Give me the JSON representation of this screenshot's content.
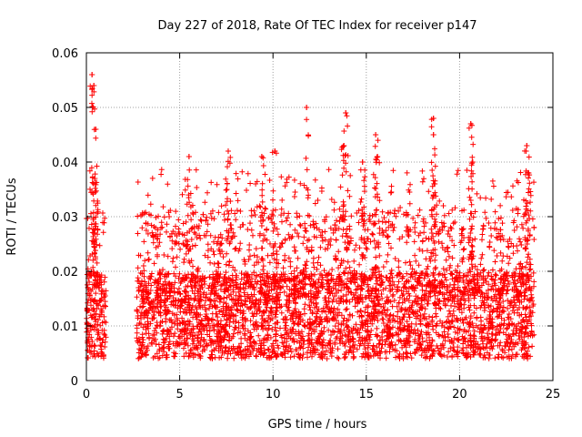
{
  "chart_data": {
    "type": "scatter",
    "title": "Day 227 of 2018, Rate Of TEC Index for receiver p147",
    "xlabel": "GPS time / hours",
    "ylabel": "ROTI / TECUs",
    "xlim": [
      0,
      25
    ],
    "ylim": [
      0,
      0.06
    ],
    "xticks": [
      0,
      5,
      10,
      15,
      20,
      25
    ],
    "xtick_labels": [
      "0",
      "5",
      "10",
      "15",
      "20",
      "25"
    ],
    "yticks": [
      0,
      0.01,
      0.02,
      0.03,
      0.04,
      0.05,
      0.06
    ],
    "ytick_labels": [
      "0",
      "0.01",
      "0.02",
      "0.03",
      "0.04",
      "0.05",
      "0.06"
    ],
    "grid": true,
    "marker": "+",
    "series": [
      {
        "name": "ROTI",
        "color": "#ff0000",
        "coverage_hours": [
          [
            0.0,
            1.05
          ],
          [
            2.7,
            24.0
          ]
        ],
        "typical_range": [
          0.004,
          0.025
        ],
        "peaks": [
          {
            "x": 0.3,
            "y": 0.056
          },
          {
            "x": 0.4,
            "y": 0.054
          },
          {
            "x": 0.5,
            "y": 0.046
          },
          {
            "x": 0.45,
            "y": 0.037
          },
          {
            "x": 5.5,
            "y": 0.041
          },
          {
            "x": 7.6,
            "y": 0.042
          },
          {
            "x": 9.4,
            "y": 0.041
          },
          {
            "x": 10.1,
            "y": 0.042
          },
          {
            "x": 11.8,
            "y": 0.05
          },
          {
            "x": 13.9,
            "y": 0.049
          },
          {
            "x": 13.8,
            "y": 0.043
          },
          {
            "x": 14.8,
            "y": 0.04
          },
          {
            "x": 15.5,
            "y": 0.045
          },
          {
            "x": 15.6,
            "y": 0.041
          },
          {
            "x": 18.6,
            "y": 0.048
          },
          {
            "x": 18.6,
            "y": 0.045
          },
          {
            "x": 20.6,
            "y": 0.047
          },
          {
            "x": 20.7,
            "y": 0.04
          },
          {
            "x": 23.6,
            "y": 0.043
          },
          {
            "x": 23.7,
            "y": 0.038
          }
        ]
      }
    ]
  }
}
